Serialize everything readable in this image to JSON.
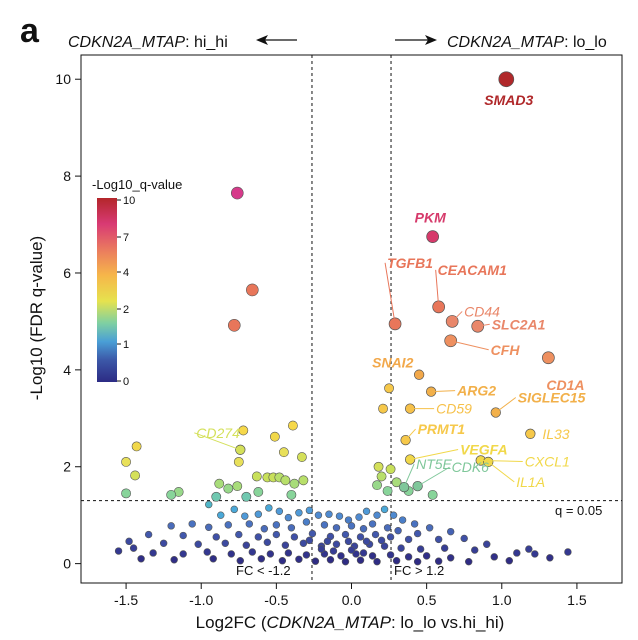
{
  "panel_label": "a",
  "header": {
    "left_gene": "CDKN2A_MTAP",
    "left_suffix": ": hi_hi",
    "right_gene": "CDKN2A_MTAP",
    "right_suffix": ": lo_lo"
  },
  "threshold_labels": {
    "q": "q = 0.05",
    "fc_low": "FC < -1.2",
    "fc_high": "FC > 1.2"
  },
  "colorbar": {
    "title": "-Log10_q-value",
    "ticks": [
      "10",
      "7",
      "4",
      "2",
      "1",
      "0"
    ]
  },
  "chart_data": {
    "type": "scatter",
    "xlabel_prefix": "Log2FC (",
    "xlabel_gene": "CDKN2A_MTAP",
    "xlabel_suffix": ": lo_lo vs.hi_hi)",
    "ylabel": "-Log10 (FDR q-value)",
    "xlim": [
      -1.8,
      1.8
    ],
    "ylim": [
      -0.4,
      10.5
    ],
    "xticks": [
      "-1.5",
      "-1.0",
      "-0.5",
      "0.0",
      "0.5",
      "1.0",
      "1.5"
    ],
    "xtick_values": [
      -1.5,
      -1.0,
      -0.5,
      0.0,
      0.5,
      1.0,
      1.5
    ],
    "yticks": [
      "0",
      "2",
      "4",
      "6",
      "8",
      "10"
    ],
    "ytick_values": [
      0,
      2,
      4,
      6,
      8,
      10
    ],
    "thresholds": {
      "q_line_y": 1.3,
      "fc_left_x": -0.263,
      "fc_right_x": 0.263
    },
    "labeled_points": [
      {
        "gene": "SMAD3",
        "x": 1.03,
        "y": 10.0,
        "bold": true,
        "color": "#b0282a"
      },
      {
        "gene": "PKM",
        "x": 0.54,
        "y": 6.75,
        "bold": true,
        "color": "#d63a6b"
      },
      {
        "gene": "TGFB1",
        "x": 0.29,
        "y": 4.95,
        "bold": true,
        "color": "#e8765a"
      },
      {
        "gene": "CEACAM1",
        "x": 0.58,
        "y": 5.3,
        "bold": true,
        "color": "#e8765a"
      },
      {
        "gene": "CD44",
        "x": 0.67,
        "y": 5.0,
        "bold": false,
        "color": "#e9876a"
      },
      {
        "gene": "SLC2A1",
        "x": 0.84,
        "y": 4.9,
        "bold": true,
        "color": "#e9876a"
      },
      {
        "gene": "CFH",
        "x": 0.66,
        "y": 4.6,
        "bold": true,
        "color": "#ee9060"
      },
      {
        "gene": "CD1A",
        "x": 1.31,
        "y": 4.25,
        "bold": true,
        "color": "#ee9060"
      },
      {
        "gene": "SNAI2",
        "x": 0.45,
        "y": 3.9,
        "bold": true,
        "color": "#f2a84a"
      },
      {
        "gene": "ARG2",
        "x": 0.53,
        "y": 3.55,
        "bold": true,
        "color": "#f2b04a"
      },
      {
        "gene": "CD59",
        "x": 0.39,
        "y": 3.2,
        "bold": false,
        "color": "#f6c14a"
      },
      {
        "gene": "SIGLEC15",
        "x": 0.96,
        "y": 3.12,
        "bold": true,
        "color": "#f2b04a"
      },
      {
        "gene": "PRMT1",
        "x": 0.36,
        "y": 2.55,
        "bold": true,
        "color": "#f6c84a"
      },
      {
        "gene": "IL33",
        "x": 1.19,
        "y": 2.68,
        "bold": false,
        "color": "#f6c84a"
      },
      {
        "gene": "VEGFA",
        "x": 0.39,
        "y": 2.15,
        "bold": true,
        "color": "#f1d84a"
      },
      {
        "gene": "CXCL1",
        "x": 0.86,
        "y": 2.13,
        "bold": false,
        "color": "#f1d84a"
      },
      {
        "gene": "IL1A",
        "x": 0.91,
        "y": 2.1,
        "bold": false,
        "color": "#f1d84a"
      },
      {
        "gene": "NT5E",
        "x": 0.35,
        "y": 1.58,
        "bold": false,
        "color": "#7fc79a"
      },
      {
        "gene": "CDK6",
        "x": 0.44,
        "y": 1.6,
        "bold": false,
        "color": "#7fc79a"
      },
      {
        "gene": "CD274",
        "x": -0.74,
        "y": 2.35,
        "bold": false,
        "color": "#d4e05a"
      }
    ],
    "unlabeled_points": [
      {
        "x": -0.76,
        "y": 7.65,
        "color": "#d63a8a"
      },
      {
        "x": -0.66,
        "y": 5.65,
        "color": "#e8765a"
      },
      {
        "x": -0.78,
        "y": 4.92,
        "color": "#e8765a"
      },
      {
        "x": 0.25,
        "y": 3.62,
        "color": "#f6c84a"
      },
      {
        "x": 0.21,
        "y": 3.2,
        "color": "#f6c84a"
      },
      {
        "x": -0.72,
        "y": 2.75,
        "color": "#f6d84a"
      },
      {
        "x": -0.39,
        "y": 2.85,
        "color": "#f6d84a"
      },
      {
        "x": -0.51,
        "y": 2.62,
        "color": "#f1d84a"
      },
      {
        "x": -1.43,
        "y": 2.42,
        "color": "#f1d84a"
      },
      {
        "x": -1.5,
        "y": 2.1,
        "color": "#e8e05a"
      },
      {
        "x": -1.44,
        "y": 1.82,
        "color": "#d4e05a"
      },
      {
        "x": -0.75,
        "y": 2.1,
        "color": "#e8e05a"
      },
      {
        "x": -0.45,
        "y": 2.3,
        "color": "#e8e05a"
      },
      {
        "x": -0.33,
        "y": 2.2,
        "color": "#d4e05a"
      },
      {
        "x": -0.63,
        "y": 1.8,
        "color": "#c8e05a"
      },
      {
        "x": -0.56,
        "y": 1.78,
        "color": "#c8e05a"
      },
      {
        "x": -0.52,
        "y": 1.78,
        "color": "#c8e05a"
      },
      {
        "x": -0.48,
        "y": 1.78,
        "color": "#b8df6a"
      },
      {
        "x": -0.44,
        "y": 1.72,
        "color": "#b8df6a"
      },
      {
        "x": -0.38,
        "y": 1.65,
        "color": "#a8dc7a"
      },
      {
        "x": -0.32,
        "y": 1.72,
        "color": "#b8df6a"
      },
      {
        "x": -0.88,
        "y": 1.65,
        "color": "#a8dc7a"
      },
      {
        "x": -0.76,
        "y": 1.6,
        "color": "#a8dc7a"
      },
      {
        "x": -0.82,
        "y": 1.55,
        "color": "#98d88a"
      },
      {
        "x": -1.15,
        "y": 1.48,
        "color": "#98d88a"
      },
      {
        "x": -1.2,
        "y": 1.42,
        "color": "#88d49a"
      },
      {
        "x": -1.5,
        "y": 1.45,
        "color": "#88d49a"
      },
      {
        "x": -0.62,
        "y": 1.48,
        "color": "#88d49a"
      },
      {
        "x": -0.4,
        "y": 1.42,
        "color": "#88d49a"
      },
      {
        "x": 0.18,
        "y": 2.0,
        "color": "#d4e05a"
      },
      {
        "x": 0.2,
        "y": 1.8,
        "color": "#b8df6a"
      },
      {
        "x": 0.26,
        "y": 1.95,
        "color": "#c8e05a"
      },
      {
        "x": 0.3,
        "y": 1.68,
        "color": "#a8dc7a"
      },
      {
        "x": 0.17,
        "y": 1.62,
        "color": "#98d88a"
      },
      {
        "x": 0.24,
        "y": 1.5,
        "color": "#88d49a"
      },
      {
        "x": 0.38,
        "y": 1.5,
        "color": "#88d49a"
      },
      {
        "x": 0.54,
        "y": 1.42,
        "color": "#88d49a"
      },
      {
        "x": -0.9,
        "y": 1.38,
        "color": "#70c8b0"
      },
      {
        "x": -0.7,
        "y": 1.38,
        "color": "#70c8b0"
      },
      {
        "x": -0.95,
        "y": 1.22,
        "color": "#4fb6c8"
      },
      {
        "x": -0.87,
        "y": 1.0,
        "color": "#4aa8d8"
      },
      {
        "x": -0.78,
        "y": 1.12,
        "color": "#4aa8d8"
      },
      {
        "x": -0.71,
        "y": 0.98,
        "color": "#4f9ad8"
      },
      {
        "x": -0.62,
        "y": 1.02,
        "color": "#4f9ad8"
      },
      {
        "x": -0.55,
        "y": 1.15,
        "color": "#4aa8d8"
      },
      {
        "x": -0.48,
        "y": 1.08,
        "color": "#4f9ad8"
      },
      {
        "x": -0.42,
        "y": 0.95,
        "color": "#4f8ad0"
      },
      {
        "x": -0.35,
        "y": 1.05,
        "color": "#4f9ad8"
      },
      {
        "x": -0.28,
        "y": 1.1,
        "color": "#4f9ad8"
      },
      {
        "x": -0.22,
        "y": 1.0,
        "color": "#4f8ad0"
      },
      {
        "x": -0.15,
        "y": 1.02,
        "color": "#4f8ad0"
      },
      {
        "x": -0.08,
        "y": 0.98,
        "color": "#4f8ad0"
      },
      {
        "x": -0.02,
        "y": 0.9,
        "color": "#4a7ec8"
      },
      {
        "x": 0.05,
        "y": 0.96,
        "color": "#4f8ad0"
      },
      {
        "x": 0.1,
        "y": 1.08,
        "color": "#4f9ad8"
      },
      {
        "x": 0.17,
        "y": 1.0,
        "color": "#4f8ad0"
      },
      {
        "x": 0.22,
        "y": 1.12,
        "color": "#4aa8d8"
      },
      {
        "x": 0.28,
        "y": 1.0,
        "color": "#4f8ad0"
      },
      {
        "x": 0.34,
        "y": 0.9,
        "color": "#4a7ec8"
      },
      {
        "x": 0.42,
        "y": 0.82,
        "color": "#4a72c0"
      },
      {
        "x": -1.06,
        "y": 0.82,
        "color": "#4a72c0"
      },
      {
        "x": -1.2,
        "y": 0.78,
        "color": "#4a6cba"
      },
      {
        "x": -0.95,
        "y": 0.75,
        "color": "#4a6cba"
      },
      {
        "x": -0.82,
        "y": 0.8,
        "color": "#4a72c0"
      },
      {
        "x": -0.68,
        "y": 0.82,
        "color": "#4a72c0"
      },
      {
        "x": -0.58,
        "y": 0.72,
        "color": "#4a6cba"
      },
      {
        "x": -0.5,
        "y": 0.8,
        "color": "#4a72c0"
      },
      {
        "x": -0.4,
        "y": 0.74,
        "color": "#4a6cba"
      },
      {
        "x": -0.3,
        "y": 0.86,
        "color": "#4a7ec8"
      },
      {
        "x": -0.18,
        "y": 0.8,
        "color": "#4a72c0"
      },
      {
        "x": -0.1,
        "y": 0.74,
        "color": "#4a6cba"
      },
      {
        "x": 0.0,
        "y": 0.78,
        "color": "#4a72c0"
      },
      {
        "x": 0.08,
        "y": 0.72,
        "color": "#4a6cba"
      },
      {
        "x": 0.14,
        "y": 0.82,
        "color": "#4a72c0"
      },
      {
        "x": 0.24,
        "y": 0.74,
        "color": "#4a6cba"
      },
      {
        "x": 0.31,
        "y": 0.68,
        "color": "#4562b4"
      },
      {
        "x": 0.52,
        "y": 0.74,
        "color": "#4a6cba"
      },
      {
        "x": 0.66,
        "y": 0.66,
        "color": "#4562b4"
      },
      {
        "x": -1.35,
        "y": 0.6,
        "color": "#4258ac"
      },
      {
        "x": -1.12,
        "y": 0.58,
        "color": "#4258ac"
      },
      {
        "x": -0.9,
        "y": 0.55,
        "color": "#3f50a6"
      },
      {
        "x": -0.75,
        "y": 0.6,
        "color": "#4258ac"
      },
      {
        "x": -0.62,
        "y": 0.55,
        "color": "#3f50a6"
      },
      {
        "x": -0.5,
        "y": 0.6,
        "color": "#4258ac"
      },
      {
        "x": -0.38,
        "y": 0.55,
        "color": "#3f50a6"
      },
      {
        "x": -0.26,
        "y": 0.62,
        "color": "#4258ac"
      },
      {
        "x": -0.14,
        "y": 0.56,
        "color": "#3f50a6"
      },
      {
        "x": -0.04,
        "y": 0.6,
        "color": "#4258ac"
      },
      {
        "x": 0.06,
        "y": 0.55,
        "color": "#3f50a6"
      },
      {
        "x": 0.16,
        "y": 0.6,
        "color": "#4258ac"
      },
      {
        "x": 0.26,
        "y": 0.55,
        "color": "#3f50a6"
      },
      {
        "x": 0.38,
        "y": 0.5,
        "color": "#3f50a6"
      },
      {
        "x": 0.58,
        "y": 0.5,
        "color": "#3f50a6"
      },
      {
        "x": 0.75,
        "y": 0.52,
        "color": "#3f50a6"
      },
      {
        "x": -1.48,
        "y": 0.46,
        "color": "#3c4aa0"
      },
      {
        "x": -1.25,
        "y": 0.42,
        "color": "#3c4aa0"
      },
      {
        "x": -1.02,
        "y": 0.4,
        "color": "#3c4aa0"
      },
      {
        "x": -0.84,
        "y": 0.42,
        "color": "#3c4aa0"
      },
      {
        "x": -0.7,
        "y": 0.38,
        "color": "#3a449a"
      },
      {
        "x": -0.56,
        "y": 0.44,
        "color": "#3c4aa0"
      },
      {
        "x": -0.44,
        "y": 0.38,
        "color": "#3a449a"
      },
      {
        "x": -0.32,
        "y": 0.42,
        "color": "#3c4aa0"
      },
      {
        "x": -0.2,
        "y": 0.36,
        "color": "#3a449a"
      },
      {
        "x": -0.1,
        "y": 0.4,
        "color": "#3c4aa0"
      },
      {
        "x": 0.02,
        "y": 0.36,
        "color": "#3a449a"
      },
      {
        "x": 0.12,
        "y": 0.4,
        "color": "#3c4aa0"
      },
      {
        "x": 0.22,
        "y": 0.36,
        "color": "#3a449a"
      },
      {
        "x": 0.33,
        "y": 0.32,
        "color": "#3a449a"
      },
      {
        "x": 0.46,
        "y": 0.3,
        "color": "#373e94"
      },
      {
        "x": 0.62,
        "y": 0.32,
        "color": "#373e94"
      },
      {
        "x": 0.82,
        "y": 0.28,
        "color": "#373e94"
      },
      {
        "x": 1.1,
        "y": 0.22,
        "color": "#343890"
      },
      {
        "x": 1.22,
        "y": 0.2,
        "color": "#343890"
      },
      {
        "x": 1.44,
        "y": 0.24,
        "color": "#343890"
      },
      {
        "x": -1.55,
        "y": 0.26,
        "color": "#343890"
      },
      {
        "x": -1.32,
        "y": 0.22,
        "color": "#343890"
      },
      {
        "x": -1.12,
        "y": 0.2,
        "color": "#343890"
      },
      {
        "x": -0.96,
        "y": 0.24,
        "color": "#343890"
      },
      {
        "x": -0.8,
        "y": 0.2,
        "color": "#32348c"
      },
      {
        "x": -0.66,
        "y": 0.24,
        "color": "#343890"
      },
      {
        "x": -0.54,
        "y": 0.2,
        "color": "#32348c"
      },
      {
        "x": -0.42,
        "y": 0.22,
        "color": "#32348c"
      },
      {
        "x": -0.3,
        "y": 0.18,
        "color": "#32348c"
      },
      {
        "x": -0.18,
        "y": 0.2,
        "color": "#32348c"
      },
      {
        "x": -0.07,
        "y": 0.16,
        "color": "#313088"
      },
      {
        "x": 0.03,
        "y": 0.2,
        "color": "#32348c"
      },
      {
        "x": 0.14,
        "y": 0.16,
        "color": "#313088"
      },
      {
        "x": 0.26,
        "y": 0.18,
        "color": "#32348c"
      },
      {
        "x": 0.38,
        "y": 0.14,
        "color": "#313088"
      },
      {
        "x": 0.5,
        "y": 0.16,
        "color": "#313088"
      },
      {
        "x": 0.66,
        "y": 0.12,
        "color": "#313088"
      },
      {
        "x": 0.95,
        "y": 0.14,
        "color": "#313088"
      },
      {
        "x": 1.32,
        "y": 0.12,
        "color": "#313088"
      },
      {
        "x": -1.4,
        "y": 0.1,
        "color": "#302e86"
      },
      {
        "x": -1.18,
        "y": 0.08,
        "color": "#302e86"
      },
      {
        "x": -0.92,
        "y": 0.1,
        "color": "#302e86"
      },
      {
        "x": -0.74,
        "y": 0.06,
        "color": "#302e86"
      },
      {
        "x": -0.6,
        "y": 0.1,
        "color": "#302e86"
      },
      {
        "x": -0.46,
        "y": 0.06,
        "color": "#302e86"
      },
      {
        "x": -0.35,
        "y": 0.09,
        "color": "#302e86"
      },
      {
        "x": -0.24,
        "y": 0.05,
        "color": "#2f2c84"
      },
      {
        "x": -0.14,
        "y": 0.08,
        "color": "#2f2c84"
      },
      {
        "x": -0.04,
        "y": 0.04,
        "color": "#2f2c84"
      },
      {
        "x": 0.06,
        "y": 0.07,
        "color": "#2f2c84"
      },
      {
        "x": 0.17,
        "y": 0.04,
        "color": "#2f2c84"
      },
      {
        "x": 0.3,
        "y": 0.06,
        "color": "#2f2c84"
      },
      {
        "x": 0.44,
        "y": 0.04,
        "color": "#2f2c84"
      },
      {
        "x": 0.58,
        "y": 0.05,
        "color": "#2f2c84"
      },
      {
        "x": 0.78,
        "y": 0.04,
        "color": "#2f2c84"
      },
      {
        "x": 1.05,
        "y": 0.06,
        "color": "#2f2c84"
      },
      {
        "x": -0.2,
        "y": 0.3,
        "color": "#373e94"
      },
      {
        "x": -0.12,
        "y": 0.26,
        "color": "#373e94"
      },
      {
        "x": 0.0,
        "y": 0.28,
        "color": "#373e94"
      },
      {
        "x": 0.08,
        "y": 0.22,
        "color": "#343890"
      },
      {
        "x": -0.02,
        "y": 0.46,
        "color": "#3c4aa0"
      },
      {
        "x": 0.1,
        "y": 0.46,
        "color": "#3c4aa0"
      },
      {
        "x": -0.16,
        "y": 0.46,
        "color": "#3c4aa0"
      },
      {
        "x": 0.2,
        "y": 0.48,
        "color": "#3c4aa0"
      },
      {
        "x": -0.28,
        "y": 0.48,
        "color": "#3c4aa0"
      },
      {
        "x": 0.44,
        "y": 0.62,
        "color": "#4258ac"
      },
      {
        "x": -1.45,
        "y": 0.32,
        "color": "#373e94"
      },
      {
        "x": 1.18,
        "y": 0.3,
        "color": "#373e94"
      },
      {
        "x": 0.9,
        "y": 0.4,
        "color": "#3a449a"
      }
    ]
  }
}
